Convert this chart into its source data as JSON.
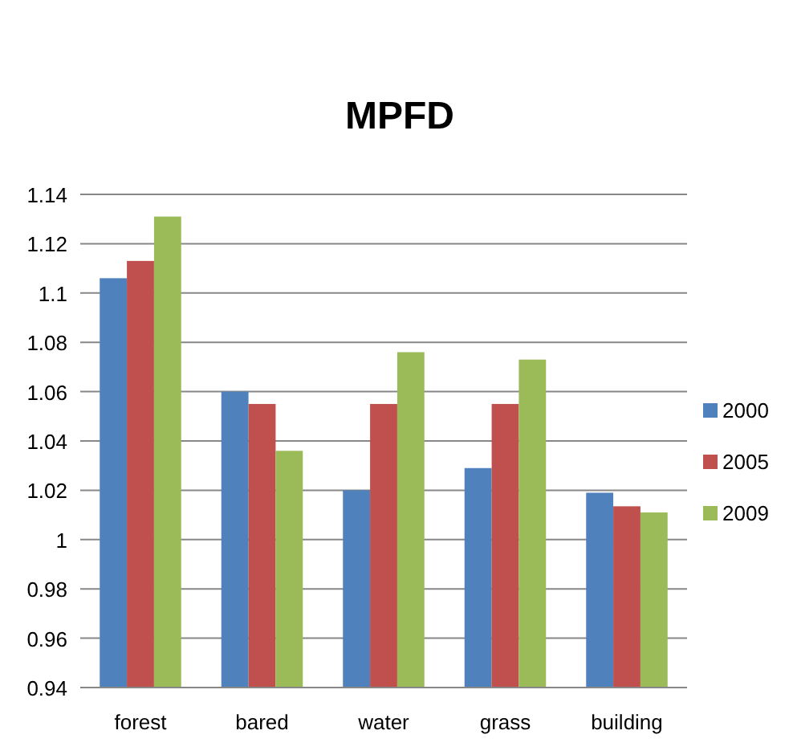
{
  "chart_data": {
    "type": "bar",
    "title": "MPFD",
    "categories": [
      "forest",
      "bared",
      "water",
      "grass",
      "building"
    ],
    "series": [
      {
        "name": "2000",
        "color": "#4f81bd",
        "values": [
          1.106,
          1.06,
          1.02,
          1.029,
          1.019
        ]
      },
      {
        "name": "2005",
        "color": "#c0504d",
        "values": [
          1.113,
          1.055,
          1.055,
          1.055,
          1.0135
        ]
      },
      {
        "name": "2009",
        "color": "#9bbb59",
        "values": [
          1.131,
          1.036,
          1.076,
          1.073,
          1.011
        ]
      }
    ],
    "ylim": [
      0.94,
      1.14
    ],
    "yticks": [
      0.94,
      0.96,
      0.98,
      1,
      1.02,
      1.04,
      1.06,
      1.08,
      1.1,
      1.12,
      1.14
    ],
    "grid": "y",
    "legend": "right"
  }
}
